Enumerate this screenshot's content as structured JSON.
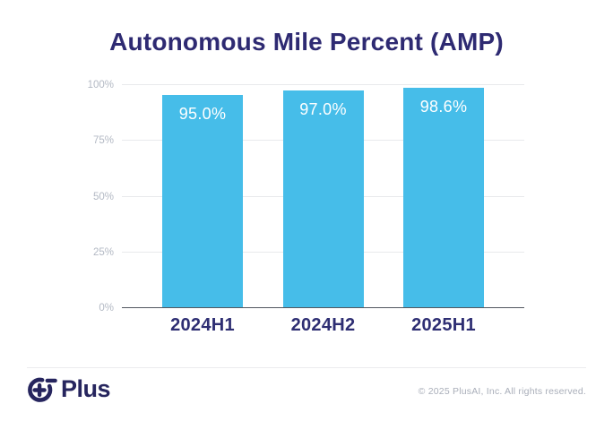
{
  "title": "Autonomous Mile Percent (AMP)",
  "chart_data": {
    "type": "bar",
    "title": "Autonomous Mile Percent (AMP)",
    "categories": [
      "2024H1",
      "2024H2",
      "2025H1"
    ],
    "values": [
      95.0,
      97.0,
      98.6
    ],
    "value_labels": [
      "95.0%",
      "97.0%",
      "98.6%"
    ],
    "xlabel": "",
    "ylabel": "",
    "ylim": [
      0,
      100
    ],
    "yticks": [
      "0%",
      "25%",
      "50%",
      "75%",
      "100%"
    ],
    "grid": true,
    "legend": "none",
    "bar_color": "#46BDE9",
    "value_label_color": "#ffffff",
    "category_label_color": "#2E2E73",
    "title_color": "#2E2A72"
  },
  "footer": {
    "logo_icon": "plus-ai-logo-icon",
    "logo_text": "Plus",
    "copyright": "© 2025 PlusAI, Inc. All rights reserved."
  },
  "colors": {
    "background": "#ffffff",
    "bar": "#46BDE9",
    "title": "#2E2A72",
    "tick_gray": "#B3B9C4",
    "gridline": "#E8E9EC",
    "axis_line": "#52565F",
    "logo_navy": "#26255E",
    "copyright_gray": "#A9AEB9"
  }
}
